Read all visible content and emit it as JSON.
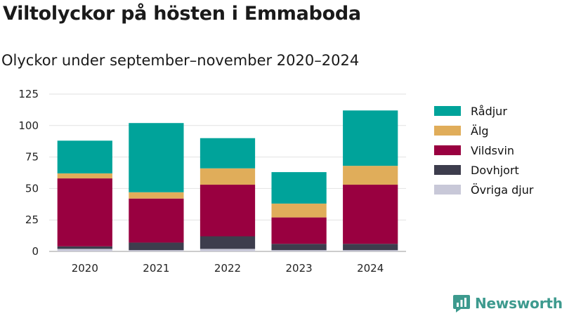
{
  "chart_data": {
    "type": "bar",
    "stacked": true,
    "title": "Viltolyckor på hösten i Emmaboda",
    "subtitle": "Olyckor under september–november 2020–2024",
    "xlabel": "",
    "ylabel": "",
    "categories": [
      "2020",
      "2021",
      "2022",
      "2023",
      "2024"
    ],
    "ylim": [
      0,
      125
    ],
    "yticks": [
      0,
      25,
      50,
      75,
      100,
      125
    ],
    "grid": true,
    "legend_position": "right",
    "series": [
      {
        "name": "Övriga djur",
        "color": "#c8c8d8",
        "values": [
          2,
          1,
          2,
          1,
          1
        ]
      },
      {
        "name": "Dovhjort",
        "color": "#3d3d4d",
        "values": [
          2,
          6,
          10,
          5,
          5
        ]
      },
      {
        "name": "Vildsvin",
        "color": "#990040",
        "values": [
          54,
          35,
          41,
          21,
          47
        ]
      },
      {
        "name": "Älg",
        "color": "#e0ad5a",
        "values": [
          4,
          5,
          13,
          11,
          15
        ]
      },
      {
        "name": "Rådjur",
        "color": "#00a39a",
        "values": [
          26,
          55,
          24,
          25,
          44
        ]
      }
    ],
    "legend_order": [
      "Rådjur",
      "Älg",
      "Vildsvin",
      "Dovhjort",
      "Övriga djur"
    ]
  },
  "branding": {
    "name": "Newsworthy",
    "color": "#3d9a8e",
    "icon": "newsworthy-logo-icon"
  }
}
